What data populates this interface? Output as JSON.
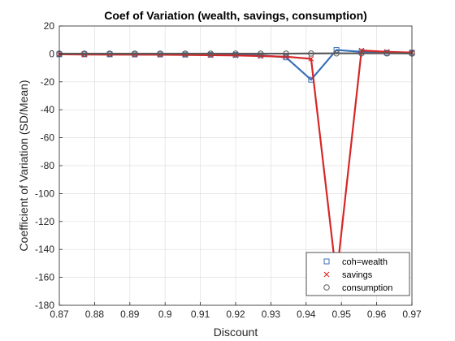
{
  "chart_data": {
    "type": "line",
    "title": "Coef of Variation (wealth, savings, consumption)",
    "xlabel": "Discount",
    "ylabel": "Coefficient of Variation (SD/Mean)",
    "xlim": [
      0.87,
      0.97
    ],
    "ylim": [
      -180,
      20
    ],
    "xticks": [
      0.87,
      0.88,
      0.89,
      0.9,
      0.91,
      0.92,
      0.93,
      0.94,
      0.95,
      0.96,
      0.97
    ],
    "xtick_labels": [
      "0.87",
      "0.88",
      "0.89",
      "0.9",
      "0.91",
      "0.92",
      "0.93",
      "0.94",
      "0.95",
      "0.96",
      "0.97"
    ],
    "yticks": [
      20,
      0,
      -20,
      -40,
      -60,
      -80,
      -100,
      -120,
      -140,
      -160,
      -180
    ],
    "ytick_labels": [
      "20",
      "0",
      "-20",
      "-40",
      "-60",
      "-80",
      "-100",
      "-120",
      "-140",
      "-160",
      "-180"
    ],
    "grid": true,
    "legend_position": "bottom-right",
    "x": [
      0.87,
      0.8771,
      0.8843,
      0.8914,
      0.8986,
      0.9057,
      0.9129,
      0.92,
      0.9271,
      0.9343,
      0.9414,
      0.9486,
      0.9557,
      0.9629,
      0.97
    ],
    "series": [
      {
        "name": "coh=wealth",
        "color": "#3a6fb5",
        "marker": "square",
        "values": [
          -0.3,
          -0.3,
          -0.3,
          -0.4,
          -0.4,
          -0.5,
          -0.6,
          -0.7,
          -1.0,
          -2.5,
          -18.5,
          2.8,
          1.5,
          0.8,
          0.9
        ]
      },
      {
        "name": "savings",
        "color": "#d62728",
        "marker": "x",
        "values": [
          -0.3,
          -0.4,
          -0.5,
          -0.5,
          -0.6,
          -0.7,
          -0.9,
          -1.1,
          -1.5,
          -2.0,
          -3.5,
          -160.0,
          2.5,
          1.5,
          1.0
        ]
      },
      {
        "name": "consumption",
        "color": "#5a5a5a",
        "marker": "circle",
        "values": [
          0.2,
          0.2,
          0.2,
          0.2,
          0.2,
          0.2,
          0.2,
          0.2,
          0.2,
          0.2,
          0.3,
          0.4,
          0.4,
          0.4,
          0.3
        ]
      }
    ]
  }
}
